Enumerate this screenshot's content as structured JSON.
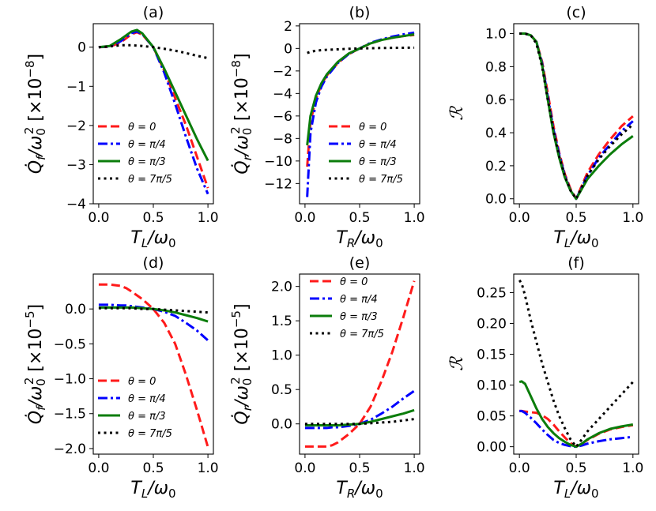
{
  "figure": {
    "panels_count": 6,
    "layout": "2x3 grid"
  },
  "colors": {
    "theta_0": "#ff1a1a",
    "theta_pi4": "#0000ff",
    "theta_pi3": "#0b7d0b",
    "theta_7pi5": "#000000"
  },
  "chart_data": [
    {
      "type": "line",
      "title": "(a)",
      "ylabel_main": "Q̇_f/ω₀²",
      "ylabel_scale": "[×10⁻⁸]",
      "xlabel": "T_L/ω₀",
      "xlim": [
        -0.05,
        1.05
      ],
      "ylim": [
        -4.0,
        0.6
      ],
      "xticks": [
        0.0,
        0.5,
        1.0
      ],
      "xtick_labels": [
        "0.0",
        "0.5",
        "1.0"
      ],
      "yticks": [
        0,
        -1,
        -2,
        -3,
        -4
      ],
      "ytick_labels": [
        "0",
        "−1",
        "−2",
        "−3",
        "−4"
      ],
      "legend": {
        "position": "lower-left",
        "entries": [
          "θ = 0",
          "θ = π/4",
          "θ = π/3",
          "θ = 7π/5"
        ]
      },
      "x": [
        0.0,
        0.1,
        0.2,
        0.3,
        0.35,
        0.4,
        0.5,
        0.6,
        0.7,
        0.8,
        0.9,
        1.0
      ],
      "series": [
        {
          "name": "θ = 0",
          "style": "dashed",
          "color": "theta_0",
          "values": [
            0.0,
            0.01,
            0.12,
            0.33,
            0.38,
            0.32,
            0.0,
            -0.6,
            -1.3,
            -2.0,
            -2.8,
            -3.6
          ]
        },
        {
          "name": "θ = π/4",
          "style": "dashdot",
          "color": "theta_pi4",
          "values": [
            0.0,
            0.02,
            0.15,
            0.36,
            0.4,
            0.33,
            0.0,
            -0.65,
            -1.45,
            -2.3,
            -3.1,
            -3.75
          ]
        },
        {
          "name": "θ = π/3",
          "style": "solid",
          "color": "theta_pi3",
          "values": [
            0.0,
            0.03,
            0.2,
            0.4,
            0.44,
            0.35,
            0.0,
            -0.55,
            -1.15,
            -1.75,
            -2.35,
            -2.9
          ]
        },
        {
          "name": "θ = 7π/5",
          "style": "dotted",
          "color": "theta_7pi5",
          "values": [
            0.0,
            0.02,
            0.05,
            0.05,
            0.04,
            0.03,
            0.0,
            -0.04,
            -0.09,
            -0.15,
            -0.22,
            -0.28
          ]
        }
      ]
    },
    {
      "type": "line",
      "title": "(b)",
      "ylabel_main": "Q̇_r/ω₀²",
      "ylabel_scale": "[×10⁻⁸]",
      "xlabel": "T_R/ω₀",
      "xlim": [
        -0.05,
        1.05
      ],
      "ylim": [
        -13.8,
        2.2
      ],
      "xticks": [
        0.0,
        0.5,
        1.0
      ],
      "xtick_labels": [
        "0.0",
        "0.5",
        "1.0"
      ],
      "yticks": [
        2,
        0,
        -2,
        -4,
        -6,
        -8,
        -10,
        -12
      ],
      "ytick_labels": [
        "2",
        "0",
        "−2",
        "−4",
        "−6",
        "−8",
        "−10",
        "−12"
      ],
      "legend": {
        "position": "lower-right",
        "entries": [
          "θ = 0",
          "θ = π/4",
          "θ = π/3",
          "θ = 7π/5"
        ]
      },
      "x": [
        0.02,
        0.05,
        0.1,
        0.15,
        0.2,
        0.3,
        0.4,
        0.5,
        0.6,
        0.7,
        0.8,
        0.9,
        1.0
      ],
      "series": [
        {
          "name": "θ = 0",
          "style": "dashed",
          "color": "theta_0",
          "values": [
            -10.5,
            -6.5,
            -4.5,
            -3.2,
            -2.4,
            -1.3,
            -0.5,
            0.0,
            0.45,
            0.75,
            0.95,
            1.1,
            1.2
          ]
        },
        {
          "name": "θ = π/4",
          "style": "dashdot",
          "color": "theta_pi4",
          "values": [
            -13.2,
            -7.5,
            -4.8,
            -3.4,
            -2.5,
            -1.3,
            -0.5,
            0.0,
            0.5,
            0.8,
            1.05,
            1.25,
            1.4
          ]
        },
        {
          "name": "θ = π/3",
          "style": "solid",
          "color": "theta_pi3",
          "values": [
            -8.6,
            -6.0,
            -4.2,
            -3.1,
            -2.3,
            -1.2,
            -0.45,
            0.0,
            0.45,
            0.75,
            0.95,
            1.1,
            1.25
          ]
        },
        {
          "name": "θ = 7π/5",
          "style": "dotted",
          "color": "theta_7pi5",
          "values": [
            -0.4,
            -0.3,
            -0.2,
            -0.15,
            -0.12,
            -0.08,
            -0.03,
            0.0,
            0.02,
            0.04,
            0.05,
            0.06,
            0.07
          ]
        }
      ]
    },
    {
      "type": "line",
      "title": "(c)",
      "ylabel_main": "ℛ",
      "ylabel_scale": "",
      "xlabel": "T_L/ω₀",
      "xlim": [
        -0.05,
        1.05
      ],
      "ylim": [
        -0.03,
        1.06
      ],
      "xticks": [
        0.0,
        0.5,
        1.0
      ],
      "xtick_labels": [
        "0.0",
        "0.5",
        "1.0"
      ],
      "yticks": [
        0.0,
        0.2,
        0.4,
        0.6,
        0.8,
        1.0
      ],
      "ytick_labels": [
        "0.0",
        "0.2",
        "0.4",
        "0.6",
        "0.8",
        "1.0"
      ],
      "legend": null,
      "x": [
        0.0,
        0.05,
        0.1,
        0.15,
        0.2,
        0.25,
        0.3,
        0.35,
        0.4,
        0.45,
        0.5,
        0.55,
        0.6,
        0.7,
        0.8,
        0.9,
        1.0
      ],
      "series": [
        {
          "name": "θ = 0",
          "style": "dashed",
          "color": "theta_0",
          "values": [
            1.0,
            1.0,
            0.99,
            0.95,
            0.83,
            0.64,
            0.44,
            0.28,
            0.15,
            0.06,
            0.0,
            0.08,
            0.16,
            0.27,
            0.36,
            0.44,
            0.5
          ]
        },
        {
          "name": "θ = π/4",
          "style": "dashdot",
          "color": "theta_pi4",
          "values": [
            1.0,
            1.0,
            0.99,
            0.95,
            0.82,
            0.62,
            0.42,
            0.27,
            0.14,
            0.05,
            0.0,
            0.07,
            0.14,
            0.25,
            0.33,
            0.41,
            0.47
          ]
        },
        {
          "name": "θ = π/3",
          "style": "solid",
          "color": "theta_pi3",
          "values": [
            1.0,
            1.0,
            0.99,
            0.95,
            0.81,
            0.6,
            0.4,
            0.25,
            0.13,
            0.05,
            0.0,
            0.06,
            0.12,
            0.2,
            0.27,
            0.33,
            0.38
          ]
        },
        {
          "name": "θ = 7π/5",
          "style": "dotted",
          "color": "theta_7pi5",
          "values": [
            1.0,
            1.0,
            0.99,
            0.94,
            0.8,
            0.6,
            0.41,
            0.26,
            0.14,
            0.05,
            0.0,
            0.07,
            0.14,
            0.24,
            0.32,
            0.39,
            0.45
          ]
        }
      ]
    },
    {
      "type": "line",
      "title": "(d)",
      "ylabel_main": "Q̇_f/ω₀²",
      "ylabel_scale": "[×10⁻⁵]",
      "xlabel": "T_L/ω₀",
      "xlim": [
        -0.05,
        1.05
      ],
      "ylim": [
        -2.08,
        0.5
      ],
      "xticks": [
        0.0,
        0.5,
        1.0
      ],
      "xtick_labels": [
        "0.0",
        "0.5",
        "1.0"
      ],
      "yticks": [
        0.0,
        -0.5,
        -1.0,
        -1.5,
        -2.0
      ],
      "ytick_labels": [
        "0.0",
        "−0.5",
        "−1.0",
        "−1.5",
        "−2.0"
      ],
      "legend": {
        "position": "lower-left",
        "entries": [
          "θ = 0",
          "θ = π/4",
          "θ = π/3",
          "θ = 7π/5"
        ]
      },
      "x": [
        0.0,
        0.1,
        0.2,
        0.25,
        0.3,
        0.4,
        0.5,
        0.6,
        0.7,
        0.8,
        0.9,
        1.0
      ],
      "series": [
        {
          "name": "θ = 0",
          "style": "dashed",
          "color": "theta_0",
          "values": [
            0.35,
            0.35,
            0.33,
            0.3,
            0.25,
            0.14,
            0.0,
            -0.2,
            -0.5,
            -0.95,
            -1.45,
            -1.98
          ]
        },
        {
          "name": "θ = π/4",
          "style": "dashdot",
          "color": "theta_pi4",
          "values": [
            0.06,
            0.06,
            0.05,
            0.05,
            0.04,
            0.02,
            0.0,
            -0.04,
            -0.1,
            -0.2,
            -0.31,
            -0.45
          ]
        },
        {
          "name": "θ = π/3",
          "style": "solid",
          "color": "theta_pi3",
          "values": [
            0.02,
            0.02,
            0.02,
            0.02,
            0.02,
            0.01,
            0.0,
            -0.02,
            -0.05,
            -0.09,
            -0.13,
            -0.18
          ]
        },
        {
          "name": "θ = 7π/5",
          "style": "dotted",
          "color": "theta_7pi5",
          "values": [
            0.01,
            0.01,
            0.01,
            0.01,
            0.01,
            0.0,
            0.0,
            -0.01,
            -0.02,
            -0.03,
            -0.04,
            -0.05
          ]
        }
      ]
    },
    {
      "type": "line",
      "title": "(e)",
      "ylabel_main": "Q̇_r/ω₀²",
      "ylabel_scale": "[×10⁻⁵]",
      "xlabel": "T_R/ω₀",
      "xlim": [
        -0.05,
        1.05
      ],
      "ylim": [
        -0.44,
        2.18
      ],
      "xticks": [
        0.0,
        0.5,
        1.0
      ],
      "xtick_labels": [
        "0.0",
        "0.5",
        "1.0"
      ],
      "yticks": [
        2.0,
        1.5,
        1.0,
        0.5,
        0.0
      ],
      "ytick_labels": [
        "2.0",
        "1.5",
        "1.0",
        "0.5",
        "0.0"
      ],
      "legend": {
        "position": "top-left",
        "entries": [
          "θ = 0",
          "θ = π/4",
          "θ = π/3",
          "θ = 7π/5"
        ]
      },
      "x": [
        0.0,
        0.1,
        0.2,
        0.25,
        0.3,
        0.4,
        0.5,
        0.6,
        0.7,
        0.8,
        0.9,
        1.0
      ],
      "series": [
        {
          "name": "θ = 0",
          "style": "dashed",
          "color": "theta_0",
          "values": [
            -0.33,
            -0.33,
            -0.33,
            -0.31,
            -0.27,
            -0.15,
            0.0,
            0.25,
            0.62,
            1.05,
            1.55,
            2.08
          ]
        },
        {
          "name": "θ = π/4",
          "style": "dashdot",
          "color": "theta_pi4",
          "values": [
            -0.06,
            -0.06,
            -0.06,
            -0.05,
            -0.05,
            -0.03,
            0.0,
            0.06,
            0.15,
            0.25,
            0.37,
            0.48
          ]
        },
        {
          "name": "θ = π/3",
          "style": "solid",
          "color": "theta_pi3",
          "values": [
            -0.02,
            -0.02,
            -0.02,
            -0.02,
            -0.02,
            -0.01,
            0.0,
            0.03,
            0.07,
            0.11,
            0.15,
            0.2
          ]
        },
        {
          "name": "θ = 7π/5",
          "style": "dotted",
          "color": "theta_7pi5",
          "values": [
            0.0,
            0.0,
            0.0,
            0.0,
            0.0,
            0.0,
            0.0,
            0.01,
            0.02,
            0.03,
            0.05,
            0.07
          ]
        }
      ]
    },
    {
      "type": "line",
      "title": "(f)",
      "ylabel_main": "ℛ",
      "ylabel_scale": "",
      "xlabel": "T_L/ω₀",
      "xlim": [
        -0.05,
        1.05
      ],
      "ylim": [
        -0.012,
        0.28
      ],
      "xticks": [
        0.0,
        0.5,
        1.0
      ],
      "xtick_labels": [
        "0.0",
        "0.5",
        "1.0"
      ],
      "yticks": [
        0.0,
        0.05,
        0.1,
        0.15,
        0.2,
        0.25
      ],
      "ytick_labels": [
        "0.00",
        "0.05",
        "0.10",
        "0.15",
        "0.20",
        "0.25"
      ],
      "legend": null,
      "x": [
        0.0,
        0.02,
        0.05,
        0.1,
        0.15,
        0.2,
        0.25,
        0.3,
        0.35,
        0.4,
        0.45,
        0.5,
        0.55,
        0.6,
        0.7,
        0.8,
        0.9,
        1.0
      ],
      "series": [
        {
          "name": "θ = 0",
          "style": "dashed",
          "color": "theta_0",
          "values": [
            0.058,
            0.058,
            0.057,
            0.056,
            0.055,
            0.051,
            0.045,
            0.036,
            0.025,
            0.015,
            0.006,
            0.0,
            0.005,
            0.011,
            0.021,
            0.028,
            0.032,
            0.035
          ]
        },
        {
          "name": "θ = π/4",
          "style": "dashdot",
          "color": "theta_pi4",
          "values": [
            0.058,
            0.058,
            0.055,
            0.047,
            0.038,
            0.028,
            0.019,
            0.011,
            0.006,
            0.003,
            0.001,
            0.0,
            0.002,
            0.005,
            0.009,
            0.012,
            0.014,
            0.016
          ]
        },
        {
          "name": "θ = π/3",
          "style": "solid",
          "color": "theta_pi3",
          "values": [
            0.105,
            0.106,
            0.102,
            0.082,
            0.062,
            0.045,
            0.032,
            0.022,
            0.014,
            0.008,
            0.003,
            0.0,
            0.005,
            0.012,
            0.022,
            0.029,
            0.033,
            0.036
          ]
        },
        {
          "name": "θ = 7π/5",
          "style": "dotted",
          "color": "theta_7pi5",
          "values": [
            0.27,
            0.265,
            0.245,
            0.205,
            0.17,
            0.135,
            0.105,
            0.075,
            0.05,
            0.03,
            0.012,
            0.0,
            0.012,
            0.025,
            0.045,
            0.065,
            0.085,
            0.105
          ]
        }
      ]
    }
  ]
}
